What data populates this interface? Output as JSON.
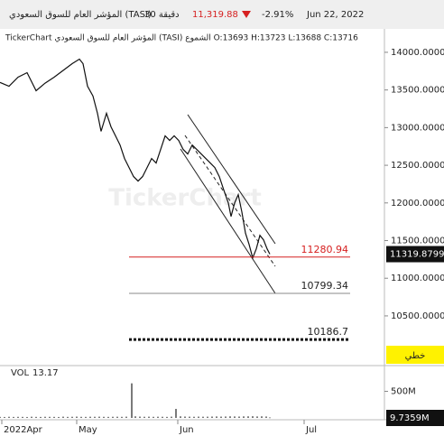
{
  "header": {
    "symbol": "المؤشر العام للسوق السعودي (TASI)",
    "interval": "30 دقيقة",
    "price": "11,319.88",
    "change": "-2.91%",
    "date": "Jun 22, 2022"
  },
  "watermark": "TickerChart",
  "chart_mode": "خطي",
  "chart_data": [
    {
      "type": "line",
      "subtitle": "TickerChart  المؤشر العام للسوق السعودي (TASI) الشموع O:13693 H:13723 L:13688 C:13716",
      "color": "#111111",
      "x": [
        0,
        10,
        20,
        30,
        40,
        50,
        60,
        70,
        80,
        88,
        92,
        97,
        103,
        108,
        112,
        118,
        123,
        128,
        133,
        138,
        143,
        148,
        153,
        158,
        163,
        168,
        173,
        178,
        183,
        188,
        193,
        198,
        203,
        208,
        213,
        218,
        223,
        228,
        233,
        238,
        243,
        248,
        253,
        256,
        260,
        264,
        268,
        272,
        276,
        280,
        284,
        288,
        292,
        296,
        299
      ],
      "values": [
        13600,
        13550,
        13670,
        13730,
        13490,
        13590,
        13670,
        13760,
        13850,
        13910,
        13850,
        13550,
        13420,
        13190,
        12950,
        13190,
        13010,
        12890,
        12770,
        12590,
        12470,
        12350,
        12290,
        12350,
        12470,
        12590,
        12530,
        12710,
        12890,
        12830,
        12890,
        12830,
        12710,
        12650,
        12770,
        12710,
        12650,
        12590,
        12530,
        12470,
        12350,
        12170,
        12000,
        11820,
        12000,
        12110,
        11880,
        11600,
        11450,
        11270,
        11390,
        11570,
        11510,
        11390,
        11320
      ],
      "xlim": [
        0,
        425
      ],
      "xticks": [
        {
          "value": 2,
          "label": "2022Apr"
        },
        {
          "value": 85,
          "label": "May"
        },
        {
          "value": 197,
          "label": "Jun"
        },
        {
          "value": 337,
          "label": "Jul"
        }
      ],
      "ylim": [
        9840,
        14275
      ],
      "yticks": [
        {
          "value": 14000,
          "label": "14000.0000"
        },
        {
          "value": 13500,
          "label": "13500.0000"
        },
        {
          "value": 13000,
          "label": "13000.0000"
        },
        {
          "value": 12500,
          "label": "12500.0000"
        },
        {
          "value": 12000,
          "label": "12000.0000"
        },
        {
          "value": 11500,
          "label": "11500.0000"
        },
        {
          "value": 11000,
          "label": "11000.0000"
        },
        {
          "value": 10500,
          "label": "10500.0000"
        }
      ],
      "lines": [
        {
          "value": 11280.94,
          "color": "#d62020",
          "style": "solid"
        },
        {
          "value": 10799.34,
          "color": "#888888",
          "style": "solid"
        },
        {
          "value": 10186.7,
          "color": "#111111",
          "style": "dotted"
        }
      ],
      "last_value": 11319.8799
    },
    {
      "type": "bar",
      "title": "VOL",
      "value_label": "13.17",
      "color": "#222222",
      "x": [
        0,
        5,
        10,
        15,
        20,
        25,
        30,
        35,
        40,
        45,
        50,
        55,
        60,
        65,
        70,
        75,
        80,
        85,
        90,
        95,
        100,
        105,
        110,
        115,
        120,
        125,
        130,
        135,
        140,
        146,
        150,
        155,
        160,
        165,
        170,
        175,
        180,
        185,
        190,
        195,
        200,
        205,
        210,
        215,
        220,
        225,
        230,
        235,
        240,
        245,
        250,
        255,
        260,
        265,
        270,
        275,
        280,
        285,
        290,
        295,
        299
      ],
      "values": [
        20000000,
        18000000,
        22000000,
        19000000,
        21000000,
        20000000,
        18000000,
        23000000,
        20000000,
        19000000,
        22000000,
        21000000,
        20000000,
        18000000,
        24000000,
        20000000,
        22000000,
        25000000,
        21000000,
        20000000,
        23000000,
        22000000,
        24000000,
        21000000,
        20000000,
        22000000,
        23000000,
        21000000,
        24000000,
        650000000,
        30000000,
        25000000,
        22000000,
        24000000,
        21000000,
        23000000,
        22000000,
        20000000,
        24000000,
        170000000,
        30000000,
        26000000,
        24000000,
        22000000,
        25000000,
        23000000,
        24000000,
        26000000,
        28000000,
        25000000,
        27000000,
        30000000,
        28000000,
        26000000,
        29000000,
        30000000,
        32000000,
        28000000,
        30000000,
        27000000,
        9735900
      ],
      "xlim": [
        0,
        425
      ],
      "ylim": [
        0,
        983000000
      ],
      "yticks": [
        {
          "value": 500000000,
          "label": "500M"
        }
      ],
      "last_value": 9735900,
      "last_label": "9.7359M"
    }
  ]
}
